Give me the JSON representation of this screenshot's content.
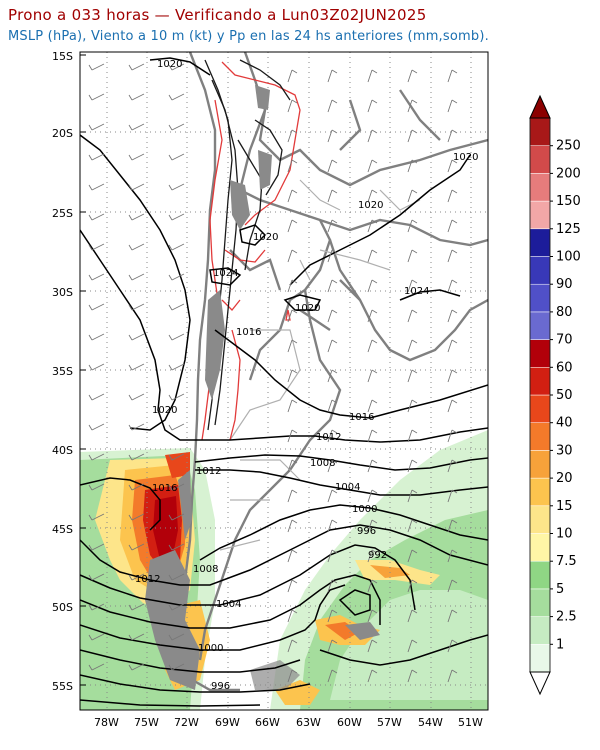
{
  "title": "Prono a 033 horas — Verificando a Lun03Z02JUN2025",
  "subtitle": "MSLP (hPa), Viento a 10 m (kt) y Pp en las 24 hs anteriores (mm,somb).",
  "lat_labels": [
    "15S",
    "20S",
    "25S",
    "30S",
    "35S",
    "40S",
    "45S",
    "50S",
    "55S"
  ],
  "lon_labels": [
    "78W",
    "75W",
    "72W",
    "69W",
    "66W",
    "63W",
    "60W",
    "57W",
    "54W",
    "51W"
  ],
  "isobar_labels": [
    {
      "text": "1020",
      "id": "nw"
    },
    {
      "text": "1020",
      "id": "ne"
    },
    {
      "text": "1020",
      "id": "c1"
    },
    {
      "text": "1020",
      "id": "c2"
    },
    {
      "text": "1024",
      "id": "c3"
    },
    {
      "text": "1020",
      "id": "c4"
    },
    {
      "text": "1024",
      "id": "e1"
    },
    {
      "text": "1016",
      "id": "c5"
    },
    {
      "text": "1020",
      "id": "w1"
    },
    {
      "text": "1016",
      "id": "e2"
    },
    {
      "text": "1012",
      "id": "e3"
    },
    {
      "text": "1008",
      "id": "e4"
    },
    {
      "text": "1012",
      "id": "c6"
    },
    {
      "text": "1004",
      "id": "e5"
    },
    {
      "text": "1016",
      "id": "w2"
    },
    {
      "text": "1000",
      "id": "e6"
    },
    {
      "text": "996",
      "id": "e7"
    },
    {
      "text": "992",
      "id": "e8"
    },
    {
      "text": "1008",
      "id": "c7"
    },
    {
      "text": "1012",
      "id": "w3"
    },
    {
      "text": "1004",
      "id": "c8"
    },
    {
      "text": "1000",
      "id": "s1"
    },
    {
      "text": "996",
      "id": "s2"
    }
  ],
  "colorbar": {
    "labels": [
      "250",
      "200",
      "150",
      "125",
      "100",
      "90",
      "80",
      "70",
      "60",
      "50",
      "40",
      "30",
      "20",
      "15",
      "10",
      "7.5",
      "5",
      "2.5",
      "1"
    ],
    "colors": [
      "#e8f8e8",
      "#c6ecc2",
      "#a5dd9d",
      "#8fd684",
      "#fff6a6",
      "#fde58a",
      "#fcc44e",
      "#f7a23a",
      "#f37a2a",
      "#e8471b",
      "#d21f12",
      "#b2000a",
      "#6a6ad0",
      "#5050c8",
      "#3838b8",
      "#1c1c9a",
      "#f2a7a7",
      "#e67c7c",
      "#d24a4a",
      "#a81818"
    ]
  }
}
